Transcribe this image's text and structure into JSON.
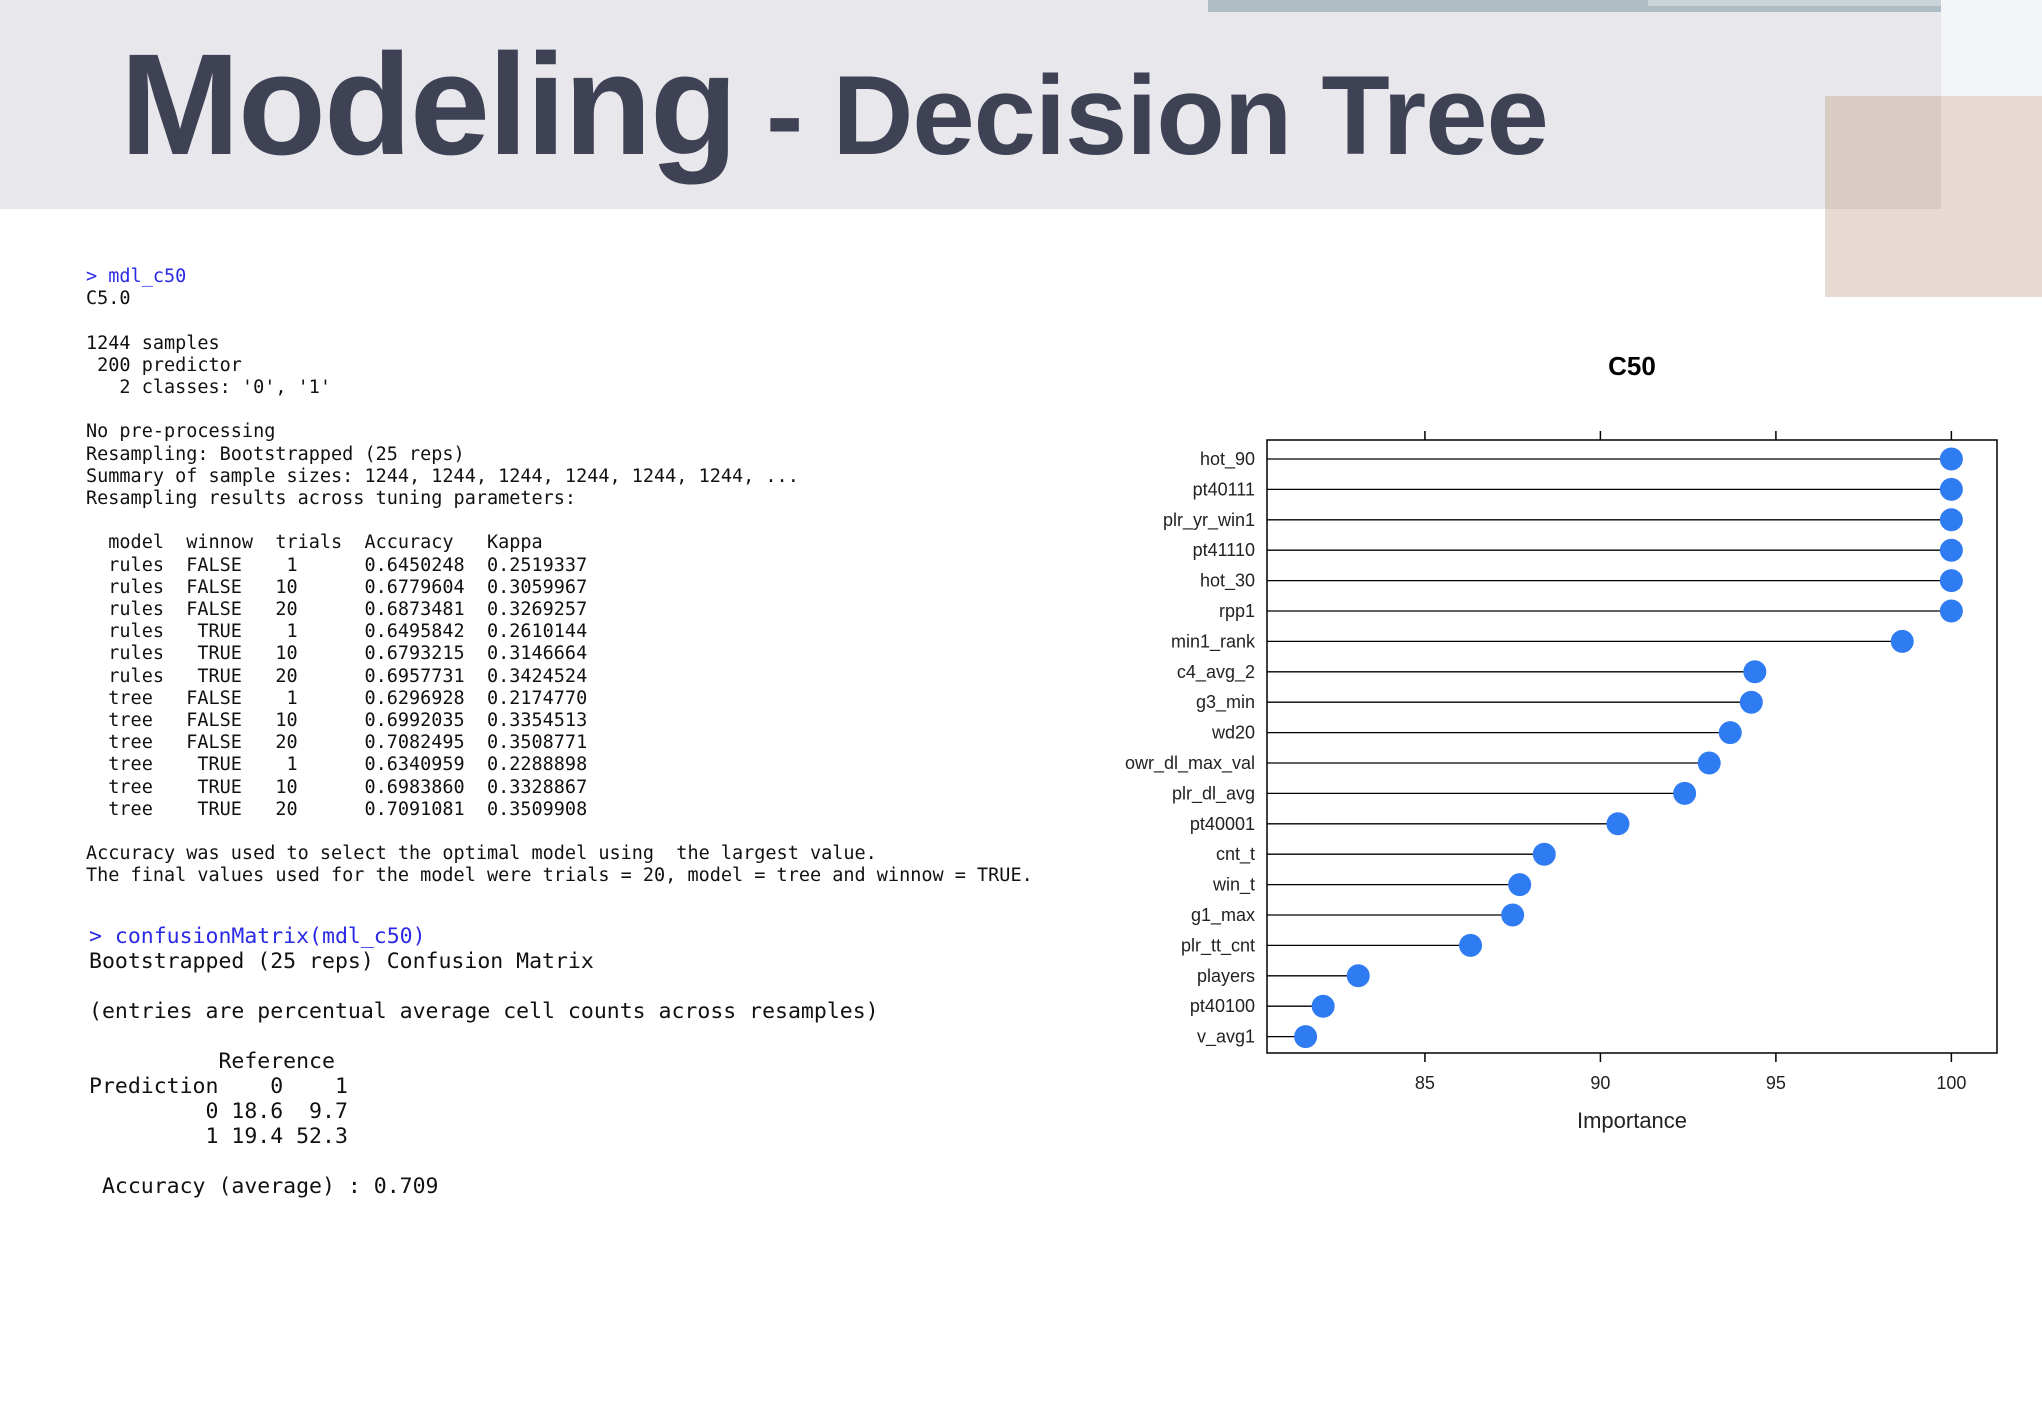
{
  "slide": {
    "title_main": "Modeling",
    "title_rest": " - Decision Tree"
  },
  "console_model": {
    "command": "> mdl_c50",
    "lines": [
      "C5.0",
      "",
      "1244 samples",
      " 200 predictor",
      "   2 classes: '0', '1'",
      "",
      "No pre-processing",
      "Resampling: Bootstrapped (25 reps)",
      "Summary of sample sizes: 1244, 1244, 1244, 1244, 1244, 1244, ...",
      "Resampling results across tuning parameters:",
      "",
      "  model  winnow  trials  Accuracy   Kappa",
      "  rules  FALSE    1      0.6450248  0.2519337",
      "  rules  FALSE   10      0.6779604  0.3059967",
      "  rules  FALSE   20      0.6873481  0.3269257",
      "  rules   TRUE    1      0.6495842  0.2610144",
      "  rules   TRUE   10      0.6793215  0.3146664",
      "  rules   TRUE   20      0.6957731  0.3424524",
      "  tree   FALSE    1      0.6296928  0.2174770",
      "  tree   FALSE   10      0.6992035  0.3354513",
      "  tree   FALSE   20      0.7082495  0.3508771",
      "  tree    TRUE    1      0.6340959  0.2288898",
      "  tree    TRUE   10      0.6983860  0.3328867",
      "  tree    TRUE   20      0.7091081  0.3509908",
      "",
      "Accuracy was used to select the optimal model using  the largest value.",
      "The final values used for the model were trials = 20, model = tree and winnow = TRUE."
    ]
  },
  "console_confusion": {
    "command": "> confusionMatrix(mdl_c50)",
    "lines": [
      "Bootstrapped (25 reps) Confusion Matrix",
      "",
      "(entries are percentual average cell counts across resamples)",
      "",
      "          Reference",
      "Prediction    0    1",
      "         0 18.6  9.7",
      "         1 19.4 52.3",
      "",
      " Accuracy (average) : 0.709"
    ]
  },
  "chart_data": {
    "type": "dot",
    "title": "C50",
    "xlabel": "Importance",
    "ylabel": "",
    "xlim": [
      80.5,
      101.3
    ],
    "xticks": [
      85,
      90,
      95,
      100
    ],
    "grid": false,
    "point_color": "#2f7bf2",
    "categories": [
      "hot_90",
      "pt40111",
      "plr_yr_win1",
      "pt41110",
      "hot_30",
      "rpp1",
      "min1_rank",
      "c4_avg_2",
      "g3_min",
      "wd20",
      "owr_dl_max_val",
      "plr_dl_avg",
      "pt40001",
      "cnt_t",
      "win_t",
      "g1_max",
      "plr_tt_cnt",
      "players",
      "pt40100",
      "v_avg1"
    ],
    "values": [
      100,
      100,
      100,
      100,
      100,
      100,
      98.6,
      94.4,
      94.3,
      93.7,
      93.1,
      92.4,
      90.5,
      88.4,
      87.7,
      87.5,
      86.3,
      83.1,
      82.1,
      81.6
    ]
  }
}
